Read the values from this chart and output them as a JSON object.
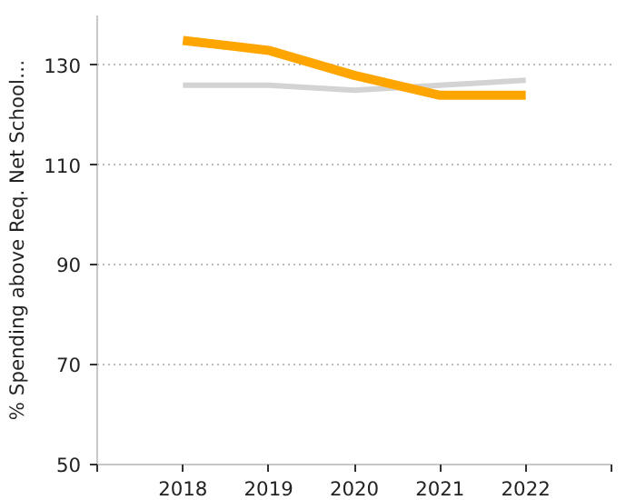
{
  "chart_data": {
    "type": "line",
    "ylabel": "% Spending above Req. Net School…",
    "x": [
      2018,
      2019,
      2020,
      2021,
      2022
    ],
    "series": [
      {
        "color": "#d3d3d3",
        "values": [
          126,
          126,
          125,
          126,
          127
        ]
      },
      {
        "color": "#ffa500",
        "values": [
          135,
          133,
          128,
          124,
          124
        ]
      }
    ],
    "xlim": [
      2017,
      2023
    ],
    "xticks": [
      {
        "value": 2017,
        "label": null
      },
      2018,
      2019,
      2020,
      2021,
      2022,
      {
        "value": 2023,
        "label": null
      }
    ],
    "ylim": [
      50,
      140
    ],
    "yticks": [
      50,
      70,
      90,
      110,
      130
    ],
    "grid": "y",
    "marker": "none",
    "line_style": "solid"
  }
}
